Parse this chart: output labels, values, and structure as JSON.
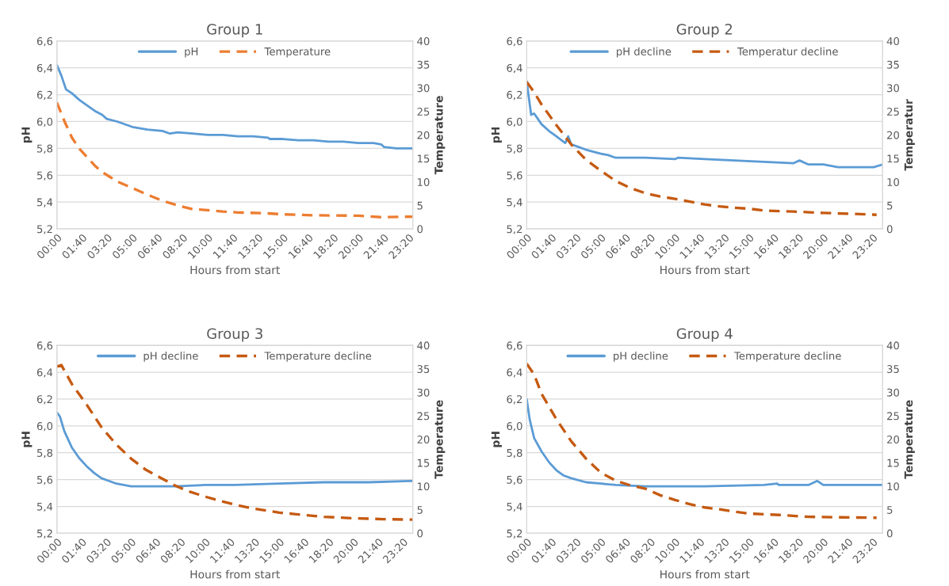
{
  "chart_data": [
    {
      "type": "line",
      "title": "Group 1",
      "xlabel": "Hours from start",
      "ylabel": "pH",
      "y2label": "Temperature",
      "legend": "top",
      "grid": "y",
      "xlim": [
        0,
        23.6
      ],
      "xticks": [
        {
          "value": 0,
          "label": "00:00"
        },
        {
          "value": 1.6667,
          "label": "01:40"
        },
        {
          "value": 3.3333,
          "label": "03:20"
        },
        {
          "value": 5,
          "label": "05:00"
        },
        {
          "value": 6.6667,
          "label": "06:40"
        },
        {
          "value": 8.3333,
          "label": "08:20"
        },
        {
          "value": 10,
          "label": "10:00"
        },
        {
          "value": 11.6667,
          "label": "11:40"
        },
        {
          "value": 13.3333,
          "label": "13:20"
        },
        {
          "value": 15,
          "label": "15:00"
        },
        {
          "value": 16.6667,
          "label": "16:40"
        },
        {
          "value": 18.3333,
          "label": "18:20"
        },
        {
          "value": 20,
          "label": "20:00"
        },
        {
          "value": 21.6667,
          "label": "21:40"
        },
        {
          "value": 23.3333,
          "label": "23:20"
        }
      ],
      "ylim": [
        5.2,
        6.6
      ],
      "yticks": [
        {
          "value": 5.2,
          "label": "5,2"
        },
        {
          "value": 5.4,
          "label": "5,4"
        },
        {
          "value": 5.6,
          "label": "5,6"
        },
        {
          "value": 5.8,
          "label": "5,8"
        },
        {
          "value": 6.0,
          "label": "6,0"
        },
        {
          "value": 6.2,
          "label": "6,2"
        },
        {
          "value": 6.4,
          "label": "6,4"
        },
        {
          "value": 6.6,
          "label": "6,6"
        }
      ],
      "y2lim": [
        0,
        40
      ],
      "y2ticks": [
        0,
        5,
        10,
        15,
        20,
        25,
        30,
        35,
        40
      ],
      "series": [
        {
          "name": "pH",
          "color": "#5b9bd5",
          "line_style": "solid",
          "x": [
            0,
            0.3,
            0.6,
            1,
            1.5,
            2,
            2.5,
            3,
            3.3,
            4,
            5,
            6,
            7,
            7.5,
            8,
            9,
            10,
            11,
            12,
            13,
            14,
            14.1,
            15,
            16,
            17,
            18,
            19,
            20,
            21,
            21.5,
            21.7,
            22.5,
            23.6
          ],
          "values": [
            6.42,
            6.34,
            6.24,
            6.21,
            6.16,
            6.12,
            6.08,
            6.05,
            6.02,
            6.0,
            5.96,
            5.94,
            5.93,
            5.91,
            5.92,
            5.91,
            5.9,
            5.9,
            5.89,
            5.89,
            5.88,
            5.87,
            5.87,
            5.86,
            5.86,
            5.85,
            5.85,
            5.84,
            5.84,
            5.83,
            5.81,
            5.8,
            5.8
          ]
        },
        {
          "name": "Temperature",
          "color": "#ed7d31",
          "line_style": "dashed",
          "axis": "y2",
          "x": [
            0,
            0.5,
            1,
            1.5,
            2,
            2.5,
            3,
            3.5,
            4,
            5,
            6,
            7,
            8,
            9,
            10,
            11,
            12,
            14,
            15,
            17,
            20,
            21.5,
            23.6
          ],
          "values": [
            26.9,
            22.9,
            19.4,
            17,
            15.3,
            13.5,
            12.1,
            11.1,
            10.1,
            8.7,
            7.3,
            6.0,
            5.0,
            4.2,
            4.0,
            3.7,
            3.5,
            3.3,
            3.1,
            2.9,
            2.8,
            2.5,
            2.6
          ]
        }
      ]
    },
    {
      "type": "line",
      "title": "Group 2",
      "xlabel": "Hours from start",
      "ylabel": "pH",
      "y2label": "Temperatur",
      "legend": "top",
      "grid": "y",
      "xlim": [
        0,
        24
      ],
      "xticks": [
        {
          "value": 0,
          "label": "00:00"
        },
        {
          "value": 1.6667,
          "label": "01:40"
        },
        {
          "value": 3.3333,
          "label": "03:20"
        },
        {
          "value": 5,
          "label": "05:00"
        },
        {
          "value": 6.6667,
          "label": "06:40"
        },
        {
          "value": 8.3333,
          "label": "08:20"
        },
        {
          "value": 10,
          "label": "10:00"
        },
        {
          "value": 11.6667,
          "label": "11:40"
        },
        {
          "value": 13.3333,
          "label": "13:20"
        },
        {
          "value": 15,
          "label": "15:00"
        },
        {
          "value": 16.6667,
          "label": "16:40"
        },
        {
          "value": 18.3333,
          "label": "18:20"
        },
        {
          "value": 20,
          "label": "20:00"
        },
        {
          "value": 21.6667,
          "label": "21:40"
        },
        {
          "value": 23.3333,
          "label": "23:20"
        }
      ],
      "ylim": [
        5.2,
        6.6
      ],
      "yticks": [
        {
          "value": 5.2,
          "label": "5,2"
        },
        {
          "value": 5.4,
          "label": "5,4"
        },
        {
          "value": 5.6,
          "label": "5,6"
        },
        {
          "value": 5.8,
          "label": "5,8"
        },
        {
          "value": 6.0,
          "label": "6,0"
        },
        {
          "value": 6.2,
          "label": "6,2"
        },
        {
          "value": 6.4,
          "label": "6,4"
        },
        {
          "value": 6.6,
          "label": "6,6"
        }
      ],
      "y2lim": [
        0,
        40
      ],
      "y2ticks": [
        0,
        5,
        10,
        15,
        20,
        25,
        30,
        35,
        40
      ],
      "series": [
        {
          "name": "pH decline",
          "color": "#5b9bd5",
          "line_style": "solid",
          "x": [
            0,
            0.3,
            0.5,
            1,
            1.5,
            2,
            2.6,
            2.8,
            3,
            3.5,
            4,
            5,
            5.5,
            6,
            8,
            10,
            10.2,
            12,
            14,
            16,
            18,
            18.4,
            19,
            20,
            21,
            23,
            23.4,
            24
          ],
          "values": [
            6.3,
            6.05,
            6.06,
            5.98,
            5.93,
            5.89,
            5.84,
            5.89,
            5.83,
            5.81,
            5.79,
            5.76,
            5.75,
            5.73,
            5.73,
            5.72,
            5.73,
            5.72,
            5.71,
            5.7,
            5.69,
            5.71,
            5.68,
            5.68,
            5.66,
            5.66,
            5.66,
            5.68
          ]
        },
        {
          "name": "Temperatur decline",
          "color": "#c55a11",
          "line_style": "dashed",
          "axis": "y2",
          "x": [
            0,
            0.5,
            1,
            2,
            3,
            4,
            5,
            6,
            7,
            8,
            9,
            10,
            11,
            12,
            13,
            14,
            15,
            16,
            18,
            20,
            22,
            23.6
          ],
          "values": [
            31.3,
            29.1,
            26.5,
            22.1,
            18,
            14.7,
            12.4,
            10.2,
            8.7,
            7.6,
            6.9,
            6.4,
            5.8,
            5.2,
            4.8,
            4.5,
            4.3,
            3.9,
            3.7,
            3.4,
            3.2,
            3.0
          ]
        }
      ]
    },
    {
      "type": "line",
      "title": "Group 3",
      "xlabel": "Hours from start",
      "ylabel": "pH",
      "y2label": "Temperature",
      "legend": "top",
      "grid": "y",
      "xlim": [
        0,
        24
      ],
      "xticks": [
        {
          "value": 0,
          "label": "00:00"
        },
        {
          "value": 1.6667,
          "label": "01:40"
        },
        {
          "value": 3.3333,
          "label": "03:20"
        },
        {
          "value": 5,
          "label": "05:00"
        },
        {
          "value": 6.6667,
          "label": "06:40"
        },
        {
          "value": 8.3333,
          "label": "08:20"
        },
        {
          "value": 10,
          "label": "10:00"
        },
        {
          "value": 11.6667,
          "label": "11:40"
        },
        {
          "value": 13.3333,
          "label": "13:20"
        },
        {
          "value": 15,
          "label": "15:00"
        },
        {
          "value": 16.6667,
          "label": "16:40"
        },
        {
          "value": 18.3333,
          "label": "18:20"
        },
        {
          "value": 20,
          "label": "20:00"
        },
        {
          "value": 21.6667,
          "label": "21:40"
        },
        {
          "value": 23.3333,
          "label": "23:20"
        }
      ],
      "ylim": [
        5.2,
        6.6
      ],
      "yticks": [
        {
          "value": 5.2,
          "label": "5,2"
        },
        {
          "value": 5.4,
          "label": "5,4"
        },
        {
          "value": 5.6,
          "label": "5,6"
        },
        {
          "value": 5.8,
          "label": "5,8"
        },
        {
          "value": 6.0,
          "label": "6,0"
        },
        {
          "value": 6.2,
          "label": "6,2"
        },
        {
          "value": 6.4,
          "label": "6,4"
        },
        {
          "value": 6.6,
          "label": "6,6"
        }
      ],
      "y2lim": [
        0,
        40
      ],
      "y2ticks": [
        0,
        5,
        10,
        15,
        20,
        25,
        30,
        35,
        40
      ],
      "series": [
        {
          "name": "pH decline",
          "color": "#5b9bd5",
          "line_style": "solid",
          "x": [
            0,
            0.2,
            0.5,
            1,
            1.5,
            2,
            2.5,
            3,
            3.5,
            4,
            5,
            6.3,
            8,
            10,
            12,
            15,
            18,
            21,
            24
          ],
          "values": [
            6.1,
            6.07,
            5.96,
            5.84,
            5.76,
            5.7,
            5.65,
            5.61,
            5.59,
            5.57,
            5.55,
            5.55,
            5.55,
            5.56,
            5.56,
            5.57,
            5.58,
            5.58,
            5.59
          ]
        },
        {
          "name": "Temperature decline",
          "color": "#c55a11",
          "line_style": "dashed",
          "axis": "y2",
          "x": [
            0,
            0.3,
            1,
            2,
            3,
            4,
            5,
            6,
            7,
            8,
            9,
            10,
            11,
            12,
            13,
            14,
            15,
            16,
            18,
            20,
            22,
            24
          ],
          "values": [
            35.5,
            35.8,
            31.8,
            27.4,
            22.6,
            18.9,
            15.9,
            13.5,
            11.8,
            10.1,
            8.8,
            7.8,
            6.9,
            6.1,
            5.4,
            4.9,
            4.4,
            4.1,
            3.5,
            3.2,
            3.0,
            2.9
          ]
        }
      ]
    },
    {
      "type": "line",
      "title": "Group 4",
      "xlabel": "Hours from start",
      "ylabel": "pH",
      "y2label": "Temperature",
      "legend": "top",
      "grid": "y",
      "xlim": [
        0,
        24
      ],
      "xticks": [
        {
          "value": 0,
          "label": "00:00"
        },
        {
          "value": 1.6667,
          "label": "01:40"
        },
        {
          "value": 3.3333,
          "label": "03:20"
        },
        {
          "value": 5,
          "label": "05:00"
        },
        {
          "value": 6.6667,
          "label": "06:40"
        },
        {
          "value": 8.3333,
          "label": "08:20"
        },
        {
          "value": 10,
          "label": "10:00"
        },
        {
          "value": 11.6667,
          "label": "11:40"
        },
        {
          "value": 13.3333,
          "label": "13:20"
        },
        {
          "value": 15,
          "label": "15:00"
        },
        {
          "value": 16.6667,
          "label": "16:40"
        },
        {
          "value": 18.3333,
          "label": "18:20"
        },
        {
          "value": 20,
          "label": "20:00"
        },
        {
          "value": 21.6667,
          "label": "21:40"
        },
        {
          "value": 23.3333,
          "label": "23:20"
        }
      ],
      "ylim": [
        5.2,
        6.6
      ],
      "yticks": [
        {
          "value": 5.2,
          "label": "5,2"
        },
        {
          "value": 5.4,
          "label": "5,4"
        },
        {
          "value": 5.6,
          "label": "5,6"
        },
        {
          "value": 5.8,
          "label": "5,8"
        },
        {
          "value": 6.0,
          "label": "6,0"
        },
        {
          "value": 6.2,
          "label": "6,2"
        },
        {
          "value": 6.4,
          "label": "6,4"
        },
        {
          "value": 6.6,
          "label": "6,6"
        }
      ],
      "y2lim": [
        0,
        40
      ],
      "y2ticks": [
        0,
        5,
        10,
        15,
        20,
        25,
        30,
        35,
        40
      ],
      "series": [
        {
          "name": "pH decline",
          "color": "#5b9bd5",
          "line_style": "solid",
          "x": [
            0,
            0.2,
            0.5,
            1,
            1.5,
            2,
            2.5,
            3,
            4,
            5,
            6,
            8,
            12,
            16,
            16.9,
            17,
            19,
            19.6,
            20,
            21,
            23,
            24
          ],
          "values": [
            6.2,
            6.05,
            5.91,
            5.81,
            5.73,
            5.67,
            5.63,
            5.61,
            5.58,
            5.57,
            5.56,
            5.55,
            5.55,
            5.56,
            5.57,
            5.56,
            5.56,
            5.59,
            5.56,
            5.56,
            5.56,
            5.56
          ]
        },
        {
          "name": "Temperature decline",
          "color": "#c55a11",
          "line_style": "dashed",
          "axis": "y2",
          "x": [
            0,
            0.5,
            1,
            2,
            3,
            4,
            5,
            6,
            7,
            8,
            9,
            10,
            11,
            12,
            13,
            14,
            15,
            17,
            19,
            21,
            23.6
          ],
          "values": [
            36.1,
            33.8,
            29.7,
            24.3,
            19.6,
            15.9,
            12.9,
            11.2,
            10.2,
            9.5,
            8.1,
            7.1,
            6.2,
            5.5,
            5.1,
            4.6,
            4.2,
            3.9,
            3.5,
            3.4,
            3.3
          ]
        }
      ]
    }
  ]
}
